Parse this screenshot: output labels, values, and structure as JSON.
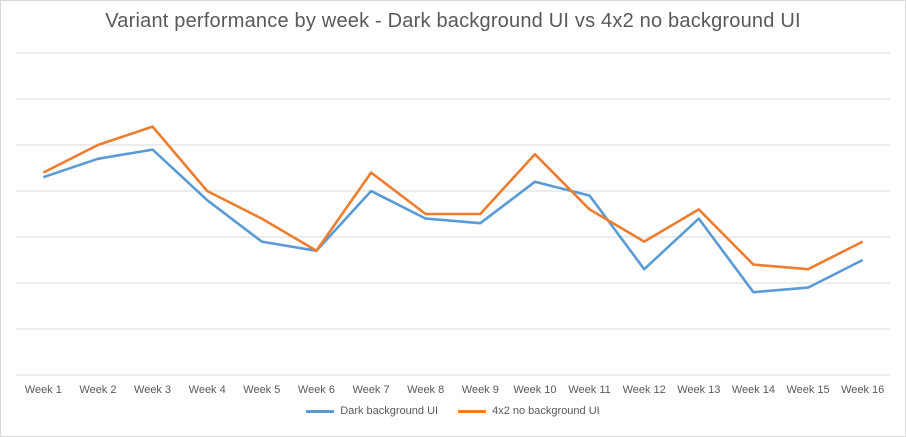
{
  "chart_data": {
    "type": "line",
    "title": "Variant performance  by week - Dark background UI vs 4x2 no background UI",
    "categories": [
      "Week 1",
      "Week 2",
      "Week 3",
      "Week 4",
      "Week 5",
      "Week 6",
      "Week 7",
      "Week 8",
      "Week 9",
      "Week 10",
      "Week 11",
      "Week 12",
      "Week 13",
      "Week 14",
      "Week 15",
      "Week 16"
    ],
    "series": [
      {
        "name": "Dark background UI",
        "color": "#5b9bd5",
        "values": [
          4.3,
          4.7,
          4.9,
          3.8,
          2.9,
          2.7,
          4.0,
          3.4,
          3.3,
          4.2,
          3.9,
          2.3,
          3.4,
          1.8,
          1.9,
          2.5
        ]
      },
      {
        "name": "4x2 no background UI",
        "color": "#ed7d31",
        "values": [
          4.4,
          5.0,
          5.4,
          4.0,
          3.4,
          2.7,
          4.4,
          3.5,
          3.5,
          4.8,
          3.6,
          2.9,
          3.6,
          2.4,
          2.3,
          2.9
        ]
      }
    ],
    "ylim": [
      0,
      7
    ],
    "grid": true,
    "legend_position": "bottom"
  }
}
